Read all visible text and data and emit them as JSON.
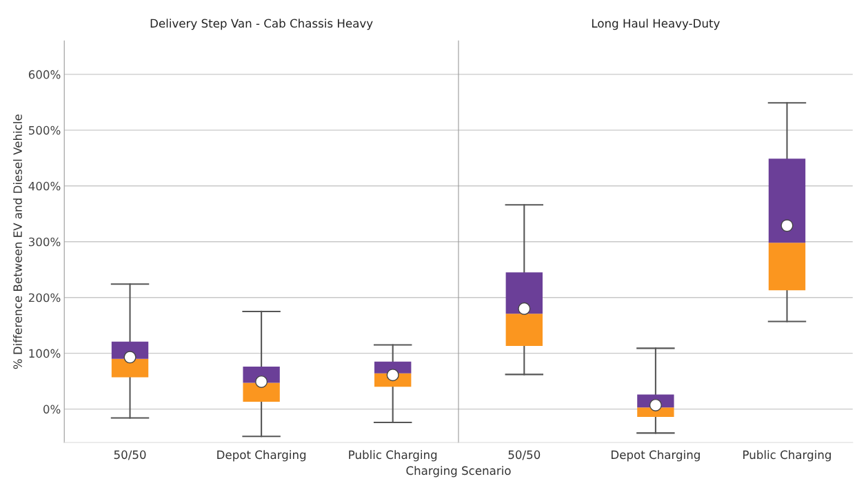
{
  "chart_data": [
    {
      "type": "box",
      "title": "Delivery Step Van - Cab Chassis Heavy",
      "xlabel": "Charging Scenario",
      "ylabel": "% Difference Between EV and Diesel Vehicle",
      "categories": [
        "50/50",
        "Depot Charging",
        "Public Charging"
      ],
      "series": [
        {
          "color": "#6b3f98",
          "colors": [
            "#fb961f",
            "#fb961f",
            "#fb961f"
          ],
          "boxes": [
            {
              "low": -16,
              "q1": 57,
              "median": 90,
              "q3": 121,
              "high": 224,
              "mean": 93
            },
            {
              "low": -49,
              "q1": 13,
              "median": 47,
              "q3": 76,
              "high": 175,
              "mean": 49
            },
            {
              "low": -24,
              "q1": 40,
              "median": 64,
              "q3": 85,
              "high": 115,
              "mean": 61
            }
          ]
        }
      ],
      "ylim": [
        -60,
        660
      ],
      "yticks": [
        {
          "value": 0,
          "label": "0%"
        },
        {
          "value": 100,
          "label": "100%"
        },
        {
          "value": 200,
          "label": "200%"
        },
        {
          "value": 300,
          "label": "300%"
        },
        {
          "value": 400,
          "label": "400%"
        },
        {
          "value": 500,
          "label": "500%"
        },
        {
          "value": 600,
          "label": "600%"
        }
      ],
      "grid": "y",
      "marker": "circle"
    },
    {
      "type": "box",
      "title": "Long Haul Heavy-Duty",
      "categories": [
        "50/50",
        "Depot Charging",
        "Public Charging"
      ],
      "series": [
        {
          "color": "#6b3f98",
          "colors": [
            "#fb961f",
            "#fb961f",
            "#fb961f"
          ],
          "boxes": [
            {
              "low": 62,
              "q1": 113,
              "median": 171,
              "q3": 245,
              "high": 366,
              "mean": 180
            },
            {
              "low": -43,
              "q1": -14,
              "median": 3,
              "q3": 26,
              "high": 109,
              "mean": 7
            },
            {
              "low": 157,
              "q1": 213,
              "median": 298,
              "q3": 449,
              "high": 549,
              "mean": 329
            }
          ]
        }
      ],
      "ylim": [
        -60,
        660
      ],
      "yticks": [
        {
          "value": 0,
          "label": null
        },
        {
          "value": 100,
          "label": null
        },
        {
          "value": 200,
          "label": null
        },
        {
          "value": 300,
          "label": null
        },
        {
          "value": 400,
          "label": null
        },
        {
          "value": 500,
          "label": null
        },
        {
          "value": 600,
          "label": null
        }
      ],
      "grid": "y",
      "marker": "circle",
      "tick_labels": "x"
    }
  ]
}
